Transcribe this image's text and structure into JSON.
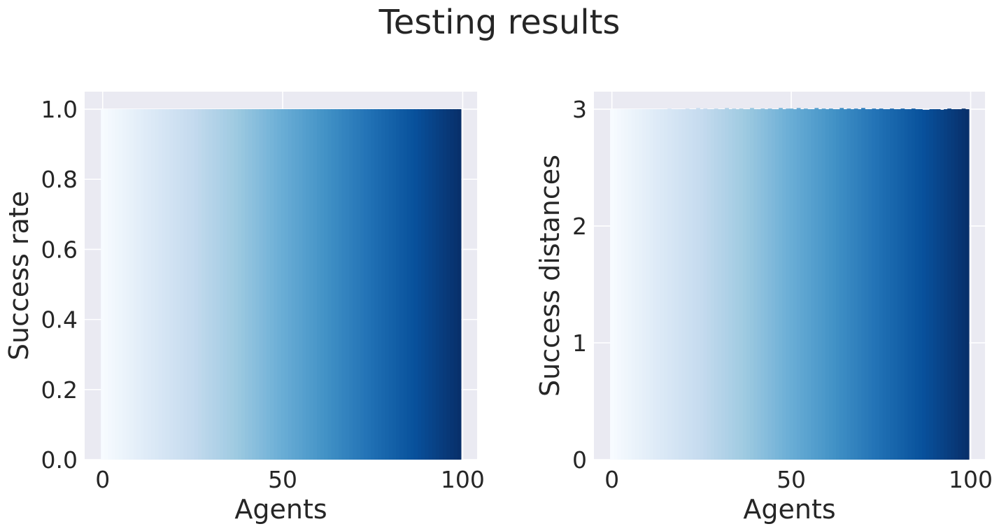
{
  "suptitle": "Testing results",
  "chart_data": [
    {
      "type": "bar",
      "xlabel": "Agents",
      "ylabel": "Success rate",
      "xlim": [
        -5,
        104
      ],
      "ylim": [
        0,
        1.05
      ],
      "xticks": [
        0,
        50,
        100
      ],
      "xtick_labels": [
        "0",
        "50",
        "100"
      ],
      "yticks": [
        0,
        0.2,
        0.4,
        0.6,
        0.8,
        1.0
      ],
      "ytick_labels": [
        "0.0",
        "0.2",
        "0.4",
        "0.6",
        "0.8",
        "1.0"
      ],
      "grid": true,
      "colormap": "Blues",
      "x": [
        0,
        1,
        2,
        3,
        4,
        5,
        6,
        7,
        8,
        9,
        10,
        11,
        12,
        13,
        14,
        15,
        16,
        17,
        18,
        19,
        20,
        21,
        22,
        23,
        24,
        25,
        26,
        27,
        28,
        29,
        30,
        31,
        32,
        33,
        34,
        35,
        36,
        37,
        38,
        39,
        40,
        41,
        42,
        43,
        44,
        45,
        46,
        47,
        48,
        49,
        50,
        51,
        52,
        53,
        54,
        55,
        56,
        57,
        58,
        59,
        60,
        61,
        62,
        63,
        64,
        65,
        66,
        67,
        68,
        69,
        70,
        71,
        72,
        73,
        74,
        75,
        76,
        77,
        78,
        79,
        80,
        81,
        82,
        83,
        84,
        85,
        86,
        87,
        88,
        89,
        90,
        91,
        92,
        93,
        94,
        95,
        96,
        97,
        98,
        99
      ],
      "values": [
        1,
        1,
        1,
        1,
        1,
        1,
        1,
        1,
        1,
        1,
        1,
        1,
        1,
        1,
        1,
        1,
        1,
        1,
        1,
        1,
        1,
        1,
        1,
        1,
        1,
        1,
        1,
        1,
        1,
        1,
        1,
        1,
        1,
        1,
        1,
        1,
        1,
        1,
        1,
        1,
        1,
        1,
        1,
        1,
        1,
        1,
        1,
        1,
        1,
        1,
        1,
        1,
        1,
        1,
        1,
        1,
        1,
        1,
        1,
        1,
        1,
        1,
        1,
        1,
        1,
        1,
        1,
        1,
        1,
        1,
        1,
        1,
        1,
        1,
        1,
        1,
        1,
        1,
        1,
        1,
        1,
        1,
        1,
        1,
        1,
        1,
        1,
        1,
        1,
        1,
        1,
        1,
        1,
        1,
        1,
        1,
        1,
        1,
        1,
        1
      ]
    },
    {
      "type": "bar",
      "xlabel": "Agents",
      "ylabel": "Success distances",
      "xlim": [
        -5,
        104
      ],
      "ylim": [
        0,
        3.15
      ],
      "xticks": [
        0,
        50,
        100
      ],
      "xtick_labels": [
        "0",
        "50",
        "100"
      ],
      "yticks": [
        0,
        1,
        2,
        3
      ],
      "ytick_labels": [
        "0",
        "1",
        "2",
        "3"
      ],
      "grid": true,
      "colormap": "Blues",
      "x": [
        0,
        1,
        2,
        3,
        4,
        5,
        6,
        7,
        8,
        9,
        10,
        11,
        12,
        13,
        14,
        15,
        16,
        17,
        18,
        19,
        20,
        21,
        22,
        23,
        24,
        25,
        26,
        27,
        28,
        29,
        30,
        31,
        32,
        33,
        34,
        35,
        36,
        37,
        38,
        39,
        40,
        41,
        42,
        43,
        44,
        45,
        46,
        47,
        48,
        49,
        50,
        51,
        52,
        53,
        54,
        55,
        56,
        57,
        58,
        59,
        60,
        61,
        62,
        63,
        64,
        65,
        66,
        67,
        68,
        69,
        70,
        71,
        72,
        73,
        74,
        75,
        76,
        77,
        78,
        79,
        80,
        81,
        82,
        83,
        84,
        85,
        86,
        87,
        88,
        89,
        90,
        91,
        92,
        93,
        94,
        95,
        96,
        97,
        98,
        99
      ],
      "values": [
        3.0,
        3.0,
        3.0,
        3.0,
        3.0,
        3.0,
        3.0,
        3.0,
        3.0,
        3.0,
        3.0,
        3.0,
        3.0,
        3.0,
        3.0,
        3.0,
        3.005,
        3.0,
        3.0,
        3.0,
        3.0,
        3.005,
        3.0,
        3.0,
        3.01,
        3.0,
        3.005,
        3.0,
        3.0,
        3.005,
        3.0,
        3.0,
        3.01,
        3.0,
        3.005,
        3.0,
        3.005,
        3.0,
        3.0,
        3.01,
        3.0,
        3.0,
        3.005,
        3.0,
        3.005,
        3.0,
        3.0,
        3.01,
        3.0,
        3.005,
        3.005,
        3.0,
        3.01,
        3.0,
        3.005,
        3.0,
        3.0,
        3.01,
        3.0,
        3.005,
        3.0,
        3.005,
        3.0,
        3.0,
        3.01,
        3.0,
        3.005,
        3.0,
        3.005,
        3.0,
        3.01,
        3.0,
        3.0,
        3.005,
        3.0,
        3.005,
        3.0,
        3.0,
        3.005,
        3.0,
        3.0,
        3.005,
        3.0,
        3.0,
        3.005,
        3.0,
        3.0,
        2.995,
        2.995,
        3.0,
        3.0,
        3.0,
        2.995,
        3.0,
        3.005,
        3.0,
        3.0,
        3.0,
        3.005,
        3.0
      ]
    }
  ]
}
